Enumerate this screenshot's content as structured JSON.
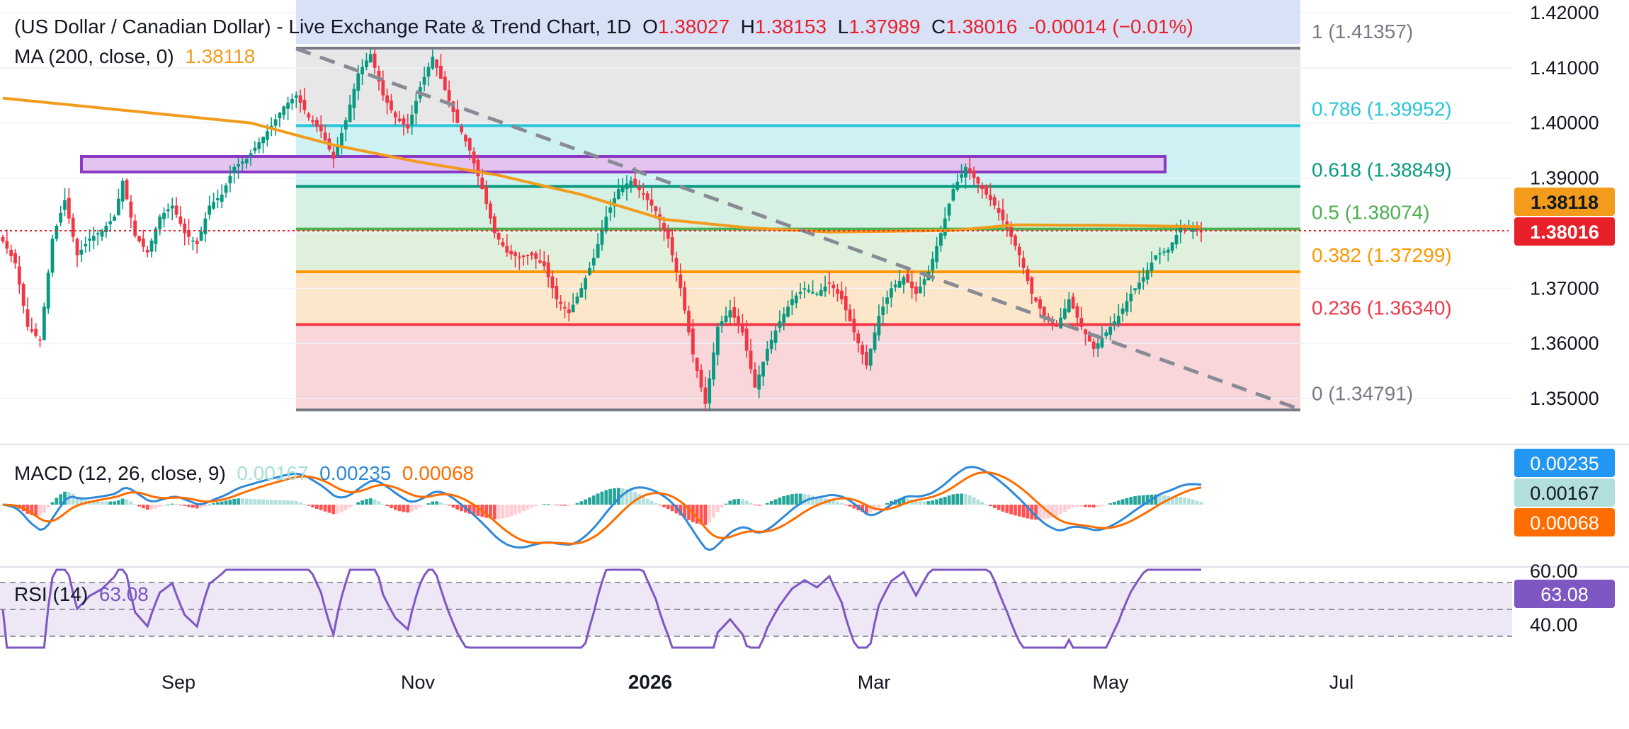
{
  "header": {
    "symbol_label": "(US Dollar / Canadian Dollar) - Live Exchange Rate & Trend Chart, 1D",
    "o_label": "O",
    "o_value": "1.38027",
    "h_label": "H",
    "h_value": "1.38153",
    "l_label": "L",
    "l_value": "1.37989",
    "c_label": "C",
    "c_value": "1.38016",
    "change": "-0.00014 (−0.01%)"
  },
  "ma": {
    "label": "MA (200, close, 0)",
    "value": "1.38118",
    "color": "#f39b1b"
  },
  "price_tag": {
    "value": "1.38016",
    "color": "#e8202a"
  },
  "macd": {
    "label": "MACD (12, 26, close, 9)",
    "hist_value": "0.00167",
    "macd_value": "0.00235",
    "signal_value": "0.00068"
  },
  "rsi": {
    "label": "RSI (14)",
    "value": "63.08"
  },
  "chart_data": {
    "type": "candlestick",
    "timeframe": "1D",
    "x_ticks": [
      "Sep",
      "Nov",
      "2026",
      "Mar",
      "May",
      "Jul"
    ],
    "y_ticks": [
      "1.42000",
      "1.41000",
      "1.40000",
      "1.39000",
      "1.38000",
      "1.37000",
      "1.36000",
      "1.35000"
    ],
    "ylim": [
      1.345,
      1.4215
    ],
    "fib_levels": [
      {
        "ratio": "1",
        "value": 1.41357,
        "label": "1 (1.41357)",
        "color": "#787b86"
      },
      {
        "ratio": "0.786",
        "value": 1.39952,
        "label": "0.786 (1.39952)",
        "color": "#26c6da"
      },
      {
        "ratio": "0.618",
        "value": 1.38849,
        "label": "0.618 (1.38849)",
        "color": "#089981"
      },
      {
        "ratio": "0.5",
        "value": 1.38074,
        "label": "0.5 (1.38074)",
        "color": "#4caf50"
      },
      {
        "ratio": "0.382",
        "value": 1.37299,
        "label": "0.382 (1.37299)",
        "color": "#ff9800"
      },
      {
        "ratio": "0.236",
        "value": 1.3634,
        "label": "0.236 (1.36340)",
        "color": "#f23645"
      },
      {
        "ratio": "0",
        "value": 1.34791,
        "label": "0 (1.34791)",
        "color": "#787b86"
      }
    ],
    "resistance_zone": [
      1.391,
      1.394
    ],
    "trendline": {
      "start_value": 1.4135,
      "end_value": 1.348
    },
    "rsi_ticks": [
      "60.00",
      "40.00"
    ],
    "close_anchors": [
      {
        "day": 0,
        "close": 1.3785
      },
      {
        "day": 3,
        "close": 1.3745
      },
      {
        "day": 6,
        "close": 1.363
      },
      {
        "day": 9,
        "close": 1.3605
      },
      {
        "day": 12,
        "close": 1.379
      },
      {
        "day": 15,
        "close": 1.386
      },
      {
        "day": 18,
        "close": 1.376
      },
      {
        "day": 21,
        "close": 1.379
      },
      {
        "day": 24,
        "close": 1.3805
      },
      {
        "day": 27,
        "close": 1.383
      },
      {
        "day": 29,
        "close": 1.3895
      },
      {
        "day": 32,
        "close": 1.3795
      },
      {
        "day": 35,
        "close": 1.3765
      },
      {
        "day": 38,
        "close": 1.383
      },
      {
        "day": 41,
        "close": 1.385
      },
      {
        "day": 44,
        "close": 1.38
      },
      {
        "day": 47,
        "close": 1.378
      },
      {
        "day": 50,
        "close": 1.385
      },
      {
        "day": 53,
        "close": 1.387
      },
      {
        "day": 56,
        "close": 1.392
      },
      {
        "day": 59,
        "close": 1.3935
      },
      {
        "day": 62,
        "close": 1.3965
      },
      {
        "day": 65,
        "close": 1.3995
      },
      {
        "day": 68,
        "close": 1.403
      },
      {
        "day": 71,
        "close": 1.405
      },
      {
        "day": 74,
        "close": 1.401
      },
      {
        "day": 77,
        "close": 1.3985
      },
      {
        "day": 80,
        "close": 1.3935
      },
      {
        "day": 83,
        "close": 1.4005
      },
      {
        "day": 86,
        "close": 1.409
      },
      {
        "day": 89,
        "close": 1.4125
      },
      {
        "day": 92,
        "close": 1.405
      },
      {
        "day": 95,
        "close": 1.401
      },
      {
        "day": 98,
        "close": 1.399
      },
      {
        "day": 101,
        "close": 1.4065
      },
      {
        "day": 104,
        "close": 1.412
      },
      {
        "day": 107,
        "close": 1.406
      },
      {
        "day": 110,
        "close": 1.4
      },
      {
        "day": 113,
        "close": 1.395
      },
      {
        "day": 116,
        "close": 1.388
      },
      {
        "day": 119,
        "close": 1.38
      },
      {
        "day": 122,
        "close": 1.3765
      },
      {
        "day": 125,
        "close": 1.3755
      },
      {
        "day": 128,
        "close": 1.376
      },
      {
        "day": 131,
        "close": 1.374
      },
      {
        "day": 134,
        "close": 1.368
      },
      {
        "day": 137,
        "close": 1.3655
      },
      {
        "day": 140,
        "close": 1.37
      },
      {
        "day": 143,
        "close": 1.3755
      },
      {
        "day": 146,
        "close": 1.383
      },
      {
        "day": 149,
        "close": 1.388
      },
      {
        "day": 152,
        "close": 1.3895
      },
      {
        "day": 155,
        "close": 1.387
      },
      {
        "day": 158,
        "close": 1.384
      },
      {
        "day": 161,
        "close": 1.379
      },
      {
        "day": 164,
        "close": 1.37
      },
      {
        "day": 167,
        "close": 1.358
      },
      {
        "day": 170,
        "close": 1.349
      },
      {
        "day": 173,
        "close": 1.363
      },
      {
        "day": 176,
        "close": 1.366
      },
      {
        "day": 179,
        "close": 1.362
      },
      {
        "day": 182,
        "close": 1.352
      },
      {
        "day": 185,
        "close": 1.359
      },
      {
        "day": 188,
        "close": 1.364
      },
      {
        "day": 191,
        "close": 1.368
      },
      {
        "day": 194,
        "close": 1.37
      },
      {
        "day": 197,
        "close": 1.369
      },
      {
        "day": 200,
        "close": 1.371
      },
      {
        "day": 203,
        "close": 1.368
      },
      {
        "day": 206,
        "close": 1.362
      },
      {
        "day": 209,
        "close": 1.356
      },
      {
        "day": 212,
        "close": 1.365
      },
      {
        "day": 215,
        "close": 1.37
      },
      {
        "day": 218,
        "close": 1.372
      },
      {
        "day": 221,
        "close": 1.369
      },
      {
        "day": 224,
        "close": 1.373
      },
      {
        "day": 227,
        "close": 1.38
      },
      {
        "day": 230,
        "close": 1.388
      },
      {
        "day": 233,
        "close": 1.392
      },
      {
        "day": 235,
        "close": 1.39
      },
      {
        "day": 237,
        "close": 1.388
      },
      {
        "day": 240,
        "close": 1.385
      },
      {
        "day": 243,
        "close": 1.381
      },
      {
        "day": 246,
        "close": 1.376
      },
      {
        "day": 249,
        "close": 1.369
      },
      {
        "day": 252,
        "close": 1.365
      },
      {
        "day": 255,
        "close": 1.363
      },
      {
        "day": 258,
        "close": 1.368
      },
      {
        "day": 261,
        "close": 1.363
      },
      {
        "day": 264,
        "close": 1.359
      },
      {
        "day": 267,
        "close": 1.362
      },
      {
        "day": 270,
        "close": 1.365
      },
      {
        "day": 273,
        "close": 1.369
      },
      {
        "day": 276,
        "close": 1.372
      },
      {
        "day": 279,
        "close": 1.376
      },
      {
        "day": 282,
        "close": 1.377
      },
      {
        "day": 285,
        "close": 1.381
      },
      {
        "day": 288,
        "close": 1.3808
      },
      {
        "day": 290,
        "close": 1.38016
      }
    ],
    "ma200_anchors": [
      {
        "day": 0,
        "value": 1.4045
      },
      {
        "day": 60,
        "value": 1.4
      },
      {
        "day": 80,
        "value": 1.396
      },
      {
        "day": 100,
        "value": 1.393
      },
      {
        "day": 120,
        "value": 1.3905
      },
      {
        "day": 140,
        "value": 1.387
      },
      {
        "day": 160,
        "value": 1.3825
      },
      {
        "day": 180,
        "value": 1.381
      },
      {
        "day": 200,
        "value": 1.3802
      },
      {
        "day": 230,
        "value": 1.3805
      },
      {
        "day": 245,
        "value": 1.3815
      },
      {
        "day": 270,
        "value": 1.3814
      },
      {
        "day": 290,
        "value": 1.38118
      }
    ]
  }
}
